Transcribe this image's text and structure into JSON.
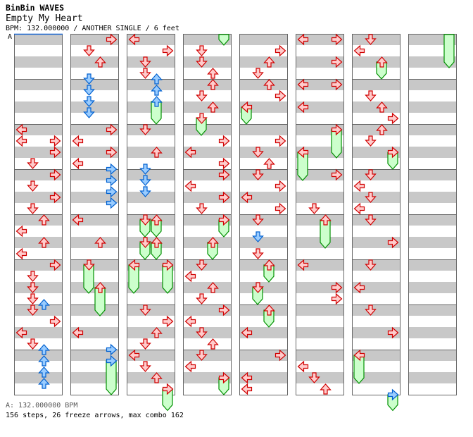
{
  "header": {
    "artist": "BinBin WAVES",
    "title": "Empty My Heart",
    "meta": "BPM: 132.000000 / ANOTHER SINGLE / 6 feet",
    "bpm_marker_label": "A"
  },
  "footer": {
    "bpm_line": "A: 132.000000 BPM",
    "stats": "156 steps, 26 freeze arrows, max combo 162"
  },
  "colors": {
    "stripe": "#c8c8c8",
    "border": "#666666",
    "bpm_marker": "#1060d0",
    "quarter_stroke": "#d00000",
    "quarter_fill": "#ffcccc",
    "eighth_stroke": "#0060d0",
    "eighth_fill": "#99ccff",
    "freeze_stroke": "#009000",
    "freeze_fill": "#ccffcc"
  },
  "lanes": [
    "left",
    "down",
    "up",
    "right"
  ],
  "columns": [
    {
      "notes": [
        [
          8,
          0,
          "q"
        ],
        [
          9,
          0,
          "q"
        ],
        [
          9,
          3,
          "q"
        ],
        [
          10,
          3,
          "q"
        ],
        [
          11,
          1,
          "q"
        ],
        [
          12,
          3,
          "q"
        ],
        [
          13,
          1,
          "q"
        ],
        [
          14,
          3,
          "q"
        ],
        [
          15,
          1,
          "q"
        ],
        [
          16,
          2,
          "q"
        ],
        [
          17,
          0,
          "q"
        ],
        [
          18,
          2,
          "q"
        ],
        [
          19,
          0,
          "q"
        ],
        [
          20,
          3,
          "q"
        ],
        [
          21,
          1,
          "q"
        ],
        [
          22,
          1,
          "q"
        ],
        [
          23,
          1,
          "q"
        ],
        [
          23.5,
          2,
          "e"
        ],
        [
          24,
          1,
          "q"
        ],
        [
          25,
          3,
          "q"
        ],
        [
          26,
          0,
          "q"
        ],
        [
          27,
          1,
          "q"
        ],
        [
          27.5,
          2,
          "e"
        ],
        [
          28.5,
          2,
          "e"
        ],
        [
          29.5,
          2,
          "e"
        ],
        [
          30.5,
          2,
          "e"
        ]
      ],
      "freezes": []
    },
    {
      "notes": [
        [
          0,
          3,
          "q"
        ],
        [
          1,
          1,
          "q"
        ],
        [
          2,
          2,
          "q"
        ],
        [
          3.5,
          1,
          "e"
        ],
        [
          4.5,
          1,
          "e"
        ],
        [
          5.5,
          1,
          "e"
        ],
        [
          6.5,
          1,
          "e"
        ],
        [
          8,
          3,
          "q"
        ],
        [
          9,
          0,
          "q"
        ],
        [
          10,
          3,
          "q"
        ],
        [
          11,
          0,
          "q"
        ],
        [
          11.5,
          3,
          "e"
        ],
        [
          12.5,
          3,
          "e"
        ],
        [
          13.5,
          3,
          "e"
        ],
        [
          14.5,
          3,
          "e"
        ],
        [
          16,
          0,
          "q"
        ],
        [
          18,
          2,
          "q"
        ],
        [
          26,
          0,
          "q"
        ],
        [
          27.5,
          3,
          "e"
        ]
      ],
      "freezes": [
        [
          20,
          22,
          1,
          "q",
          true
        ],
        [
          22,
          24,
          2,
          "q",
          true
        ],
        [
          28.5,
          31,
          3,
          "e",
          true
        ]
      ]
    },
    {
      "notes": [
        [
          0,
          0,
          "q"
        ],
        [
          1,
          3,
          "q"
        ],
        [
          2,
          1,
          "q"
        ],
        [
          3,
          1,
          "q"
        ],
        [
          3.5,
          2,
          "e"
        ],
        [
          4.5,
          2,
          "e"
        ],
        [
          8,
          1,
          "q"
        ],
        [
          10,
          2,
          "q"
        ],
        [
          11.5,
          1,
          "e"
        ],
        [
          12.5,
          1,
          "e"
        ],
        [
          13.5,
          1,
          "e"
        ],
        [
          24,
          1,
          "q"
        ],
        [
          25,
          3,
          "q"
        ],
        [
          26,
          2,
          "q"
        ],
        [
          27,
          1,
          "q"
        ],
        [
          28,
          0,
          "q"
        ],
        [
          29,
          1,
          "q"
        ],
        [
          30,
          2,
          "q"
        ]
      ],
      "freezes": [
        [
          5.5,
          7,
          2,
          "e",
          true
        ],
        [
          16,
          17,
          1,
          "q",
          true
        ],
        [
          16,
          17,
          2,
          "q",
          true
        ],
        [
          18,
          19,
          1,
          "q",
          true
        ],
        [
          18,
          19,
          2,
          "q",
          true
        ],
        [
          20,
          22,
          0,
          "q",
          true
        ],
        [
          20,
          22,
          3,
          "q",
          true
        ],
        [
          31,
          32.4,
          3,
          "q",
          true
        ]
      ]
    },
    {
      "notes": [
        [
          1,
          1,
          "q"
        ],
        [
          2,
          1,
          "q"
        ],
        [
          3,
          2,
          "q"
        ],
        [
          4,
          2,
          "q"
        ],
        [
          5,
          1,
          "q"
        ],
        [
          6,
          2,
          "q"
        ],
        [
          9,
          3,
          "q"
        ],
        [
          10,
          0,
          "q"
        ],
        [
          11,
          3,
          "q"
        ],
        [
          12,
          3,
          "q"
        ],
        [
          13,
          0,
          "q"
        ],
        [
          14,
          3,
          "q"
        ],
        [
          15,
          1,
          "q"
        ],
        [
          20,
          1,
          "q"
        ],
        [
          21,
          0,
          "q"
        ],
        [
          22,
          2,
          "q"
        ],
        [
          23,
          1,
          "q"
        ],
        [
          24,
          3,
          "q"
        ],
        [
          25,
          0,
          "q"
        ],
        [
          26,
          1,
          "q"
        ],
        [
          27,
          2,
          "q"
        ],
        [
          28,
          1,
          "q"
        ],
        [
          29,
          0,
          "q"
        ]
      ],
      "freezes": [
        [
          -0.5,
          0,
          3,
          "q",
          false
        ],
        [
          7,
          8,
          1,
          "q",
          true
        ],
        [
          16,
          17,
          3,
          "q",
          true
        ],
        [
          18,
          19,
          2,
          "q",
          true
        ],
        [
          30,
          31,
          3,
          "q",
          true
        ]
      ]
    },
    {
      "notes": [
        [
          1,
          3,
          "q"
        ],
        [
          2,
          2,
          "q"
        ],
        [
          3,
          1,
          "q"
        ],
        [
          4,
          2,
          "q"
        ],
        [
          5,
          3,
          "q"
        ],
        [
          9,
          3,
          "q"
        ],
        [
          10,
          1,
          "q"
        ],
        [
          11,
          2,
          "q"
        ],
        [
          12,
          1,
          "q"
        ],
        [
          13,
          3,
          "q"
        ],
        [
          14,
          0,
          "q"
        ],
        [
          15,
          3,
          "q"
        ],
        [
          16,
          1,
          "q"
        ],
        [
          17.5,
          1,
          "e"
        ],
        [
          19,
          1,
          "q"
        ],
        [
          26,
          0,
          "q"
        ],
        [
          28,
          3,
          "q"
        ],
        [
          30,
          0,
          "q"
        ],
        [
          31,
          0,
          "q"
        ]
      ],
      "freezes": [
        [
          6,
          7,
          0,
          "q",
          true
        ],
        [
          20,
          21,
          2,
          "q",
          true
        ],
        [
          22,
          23,
          1,
          "q",
          true
        ],
        [
          24,
          25,
          2,
          "q",
          true
        ]
      ]
    },
    {
      "notes": [
        [
          0,
          0,
          "q"
        ],
        [
          0,
          3,
          "q"
        ],
        [
          2,
          3,
          "q"
        ],
        [
          4,
          0,
          "q"
        ],
        [
          4,
          3,
          "q"
        ],
        [
          6,
          0,
          "q"
        ],
        [
          12,
          3,
          "q"
        ],
        [
          15,
          1,
          "q"
        ],
        [
          20,
          0,
          "q"
        ],
        [
          22,
          3,
          "q"
        ],
        [
          23,
          3,
          "q"
        ],
        [
          29,
          0,
          "q"
        ],
        [
          30,
          1,
          "q"
        ],
        [
          31,
          2,
          "q"
        ]
      ],
      "freezes": [
        [
          8,
          10,
          3,
          "q",
          true
        ],
        [
          10,
          12,
          0,
          "q",
          true
        ],
        [
          16,
          18,
          2,
          "q",
          true
        ]
      ]
    },
    {
      "notes": [
        [
          0,
          1,
          "q"
        ],
        [
          1,
          0,
          "q"
        ],
        [
          5,
          1,
          "q"
        ],
        [
          6,
          2,
          "q"
        ],
        [
          7,
          3,
          "q"
        ],
        [
          8,
          2,
          "q"
        ],
        [
          9,
          1,
          "q"
        ],
        [
          12,
          1,
          "q"
        ],
        [
          13,
          0,
          "q"
        ],
        [
          14,
          1,
          "q"
        ],
        [
          15,
          0,
          "q"
        ],
        [
          16,
          1,
          "q"
        ],
        [
          18,
          3,
          "q"
        ],
        [
          20,
          1,
          "q"
        ],
        [
          22,
          0,
          "q"
        ],
        [
          24,
          1,
          "q"
        ],
        [
          26,
          3,
          "q"
        ]
      ],
      "freezes": [
        [
          2,
          3,
          2,
          "q",
          true
        ],
        [
          10,
          11,
          3,
          "q",
          true
        ],
        [
          28,
          30,
          0,
          "q",
          true
        ],
        [
          31.5,
          32.4,
          3,
          "e",
          true
        ]
      ]
    },
    {
      "notes": [],
      "freezes": [
        [
          -0.5,
          2,
          3,
          "q",
          false
        ]
      ]
    }
  ]
}
